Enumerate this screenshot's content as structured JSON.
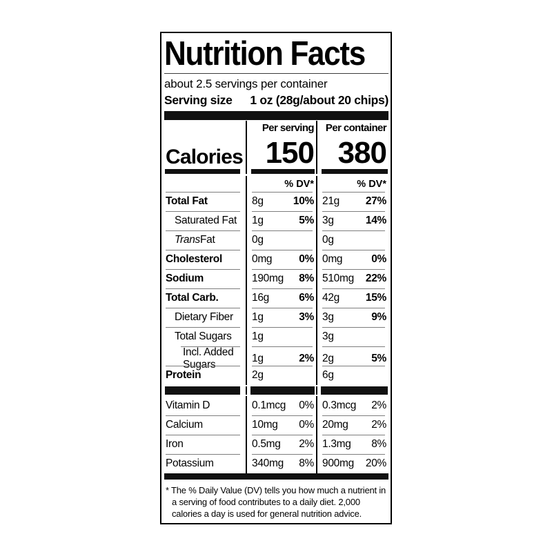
{
  "label": {
    "title": "Nutrition Facts",
    "servings_per_container": "about 2.5 servings per container",
    "serving_size_label": "Serving size",
    "serving_size_value": "1 oz (28g/about 20 chips)",
    "calories": {
      "word": "Calories",
      "per_serving_header": "Per serving",
      "per_container_header": "Per container",
      "per_serving_value": "150",
      "per_container_value": "380",
      "dv_header_serving": "% DV*",
      "dv_header_container": "% DV*"
    },
    "rows": [
      {
        "name": "Total Fat",
        "s_amt": "8g",
        "s_dv": "10%",
        "c_amt": "21g",
        "c_dv": "27%"
      },
      {
        "name": "Saturated Fat",
        "s_amt": "1g",
        "s_dv": "5%",
        "c_amt": "3g",
        "c_dv": "14%"
      },
      {
        "name_italic": "Trans",
        "name_rest": " Fat",
        "s_amt": "0g",
        "s_dv": "",
        "c_amt": "0g",
        "c_dv": ""
      },
      {
        "name": "Cholesterol",
        "s_amt": "0mg",
        "s_dv": "0%",
        "c_amt": "0mg",
        "c_dv": "0%"
      },
      {
        "name": "Sodium",
        "s_amt": "190mg",
        "s_dv": "8%",
        "c_amt": "510mg",
        "c_dv": "22%"
      },
      {
        "name": "Total Carb.",
        "s_amt": "16g",
        "s_dv": "6%",
        "c_amt": "42g",
        "c_dv": "15%"
      },
      {
        "name": "Dietary Fiber",
        "s_amt": "1g",
        "s_dv": "3%",
        "c_amt": "3g",
        "c_dv": "9%"
      },
      {
        "name": "Total Sugars",
        "s_amt": "1g",
        "s_dv": "",
        "c_amt": "3g",
        "c_dv": ""
      },
      {
        "name": "Incl. Added Sugars",
        "s_amt": "1g",
        "s_dv": "2%",
        "c_amt": "2g",
        "c_dv": "5%"
      },
      {
        "name": "Protein",
        "s_amt": "2g",
        "s_dv": "",
        "c_amt": "6g",
        "c_dv": ""
      },
      {
        "name": "Vitamin D",
        "s_amt": "0.1mcg",
        "s_dv": "0%",
        "c_amt": "0.3mcg",
        "c_dv": "2%"
      },
      {
        "name": "Calcium",
        "s_amt": "10mg",
        "s_dv": "0%",
        "c_amt": "20mg",
        "c_dv": "2%"
      },
      {
        "name": "Iron",
        "s_amt": "0.5mg",
        "s_dv": "2%",
        "c_amt": "1.3mg",
        "c_dv": "8%"
      },
      {
        "name": "Potassium",
        "s_amt": "340mg",
        "s_dv": "8%",
        "c_amt": "900mg",
        "c_dv": "20%"
      }
    ],
    "footnote": "* The % Daily Value (DV) tells you how much a nutrient in a serving of food contributes to a daily diet. 2,000 calories a day is used for general nutrition advice."
  }
}
